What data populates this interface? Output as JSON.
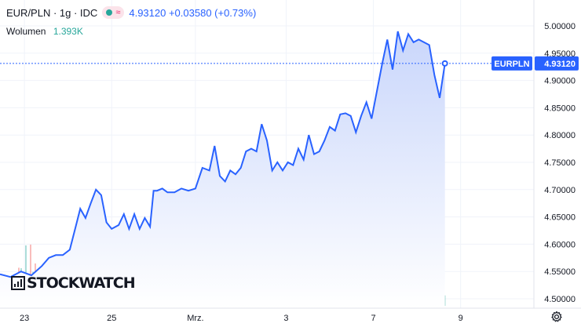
{
  "header": {
    "symbol": "EUR/PLN · 1g · IDC",
    "quote": "4.93120 +0.03580 (+0.73%)",
    "volume_label": "Wolumen",
    "volume_value": "1.393K"
  },
  "icons": {
    "status_dot": "green-status-dot-icon",
    "wave": "wave-icon",
    "settings": "gear-icon"
  },
  "logo": {
    "text": "STOCKWATCH"
  },
  "price_tag": {
    "symbol": "EURPLN",
    "value": "4.93120"
  },
  "colors": {
    "line": "#2962ff",
    "area_top": "#c9d6fb",
    "area_bottom": "#ffffff",
    "vol_up": "#26a69a",
    "vol_down": "#ef5350",
    "tag_bg": "#2962ff"
  },
  "chart_data": {
    "type": "area",
    "title": "",
    "xlabel": "",
    "ylabel": "",
    "ylim": [
      4.48,
      5.02
    ],
    "y_ticks": [
      "5.00000",
      "4.95000",
      "4.90000",
      "4.85000",
      "4.80000",
      "4.75000",
      "4.70000",
      "4.65000",
      "4.60000",
      "4.55000",
      "4.50000"
    ],
    "x_ticks": [
      {
        "label": "23",
        "t": 0.7
      },
      {
        "label": "25",
        "t": 3.2
      },
      {
        "label": "Mrz.",
        "t": 5.6
      },
      {
        "label": "3",
        "t": 8.2
      },
      {
        "label": "7",
        "t": 10.7
      },
      {
        "label": "9",
        "t": 13.2
      }
    ],
    "x_range": [
      0,
      15.3
    ],
    "grid": true,
    "last_price": 4.9312,
    "series": [
      {
        "t": [
          0,
          0.3,
          0.6,
          0.9,
          1.2,
          1.4,
          1.6,
          1.8,
          2.0,
          2.2,
          2.3,
          2.45,
          2.6,
          2.75,
          2.9,
          3.05,
          3.2,
          3.4,
          3.55,
          3.7,
          3.85,
          4.0,
          4.15,
          4.3,
          4.4,
          4.5,
          4.65,
          4.8,
          5.0,
          5.2,
          5.4,
          5.6,
          5.8,
          6.0,
          6.15,
          6.3,
          6.45,
          6.6,
          6.75,
          6.9,
          7.05,
          7.2,
          7.35,
          7.5,
          7.65,
          7.8,
          7.95,
          8.1,
          8.25,
          8.4,
          8.55,
          8.7,
          8.85,
          9.0,
          9.15,
          9.3,
          9.45,
          9.6,
          9.75,
          9.9,
          10.05,
          10.2,
          10.35,
          10.5,
          10.65,
          10.8,
          10.95,
          11.1,
          11.25,
          11.4,
          11.55,
          11.7,
          11.85,
          12.0,
          12.15,
          12.3,
          12.45,
          12.6,
          12.75
        ],
        "values": [
          4.545,
          4.54,
          4.55,
          4.543,
          4.56,
          4.575,
          4.58,
          4.58,
          4.59,
          4.64,
          4.665,
          4.648,
          4.675,
          4.7,
          4.69,
          4.64,
          4.628,
          4.635,
          4.655,
          4.628,
          4.655,
          4.628,
          4.648,
          4.632,
          4.698,
          4.698,
          4.702,
          4.695,
          4.695,
          4.702,
          4.698,
          4.702,
          4.74,
          4.735,
          4.78,
          4.725,
          4.715,
          4.735,
          4.728,
          4.74,
          4.77,
          4.775,
          4.77,
          4.82,
          4.79,
          4.735,
          4.75,
          4.735,
          4.75,
          4.745,
          4.775,
          4.755,
          4.8,
          4.765,
          4.77,
          4.79,
          4.815,
          4.808,
          4.838,
          4.84,
          4.835,
          4.805,
          4.835,
          4.86,
          4.83,
          4.88,
          4.93,
          4.975,
          4.92,
          4.99,
          4.955,
          4.985,
          4.97,
          4.975,
          4.97,
          4.965,
          4.91,
          4.868,
          4.9312
        ]
      }
    ],
    "volume": {
      "count": 190,
      "t_start": 0,
      "t_end": 12.75
    }
  }
}
